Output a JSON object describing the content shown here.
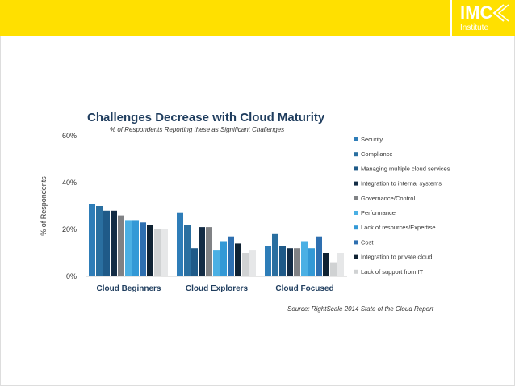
{
  "logo": {
    "main": "IMC",
    "sub": "Institute"
  },
  "chart_data": {
    "type": "bar",
    "title": "Challenges Decrease with Cloud Maturity",
    "subtitle": "% of Respondents Reporting these as Significant Challenges",
    "ylabel": "% of Respondents",
    "xlabel": "",
    "ylim": [
      0,
      60
    ],
    "yticks": [
      "0%",
      "20%",
      "40%",
      "60%"
    ],
    "yticks_values": [
      0,
      20,
      40,
      60
    ],
    "categories": [
      "Cloud Beginners",
      "Cloud Explorers",
      "Cloud Focused"
    ],
    "series": [
      {
        "name": "Security",
        "color": "#2e7db8",
        "values": [
          31,
          27,
          13
        ]
      },
      {
        "name": "Compliance",
        "color": "#2a6fa0",
        "values": [
          30,
          22,
          18
        ]
      },
      {
        "name": "Managing multiple cloud services",
        "color": "#1f5a88",
        "values": [
          28,
          12,
          13
        ]
      },
      {
        "name": "Integration to internal systems",
        "color": "#132c45",
        "values": [
          28,
          21,
          12
        ]
      },
      {
        "name": "Governance/Control",
        "color": "#808285",
        "values": [
          26,
          21,
          12
        ]
      },
      {
        "name": "Performance",
        "color": "#4bb0e4",
        "values": [
          24,
          11,
          15
        ]
      },
      {
        "name": "Lack of resources/Expertise",
        "color": "#3399d6",
        "values": [
          24,
          15,
          12
        ]
      },
      {
        "name": "Cost",
        "color": "#2e6fb0",
        "values": [
          23,
          17,
          17
        ]
      },
      {
        "name": "Integration to private cloud",
        "color": "#0f2233",
        "values": [
          22,
          14,
          10
        ]
      },
      {
        "name": "Lack of support from IT",
        "color": "#d0d2d3",
        "values": [
          20,
          10,
          6
        ]
      },
      {
        "name": "",
        "color": "#e6e7e8",
        "values": [
          20,
          11,
          10
        ]
      }
    ],
    "legend": [
      "Security",
      "Compliance",
      "Managing multiple cloud services",
      "Integration to internal systems",
      "Governance/Control",
      "Performance",
      "Lack of resources/Expertise",
      "Cost",
      "Integration to private cloud",
      "Lack of support from IT"
    ],
    "source": "Source: RightScale 2014 State of the Cloud Report"
  }
}
